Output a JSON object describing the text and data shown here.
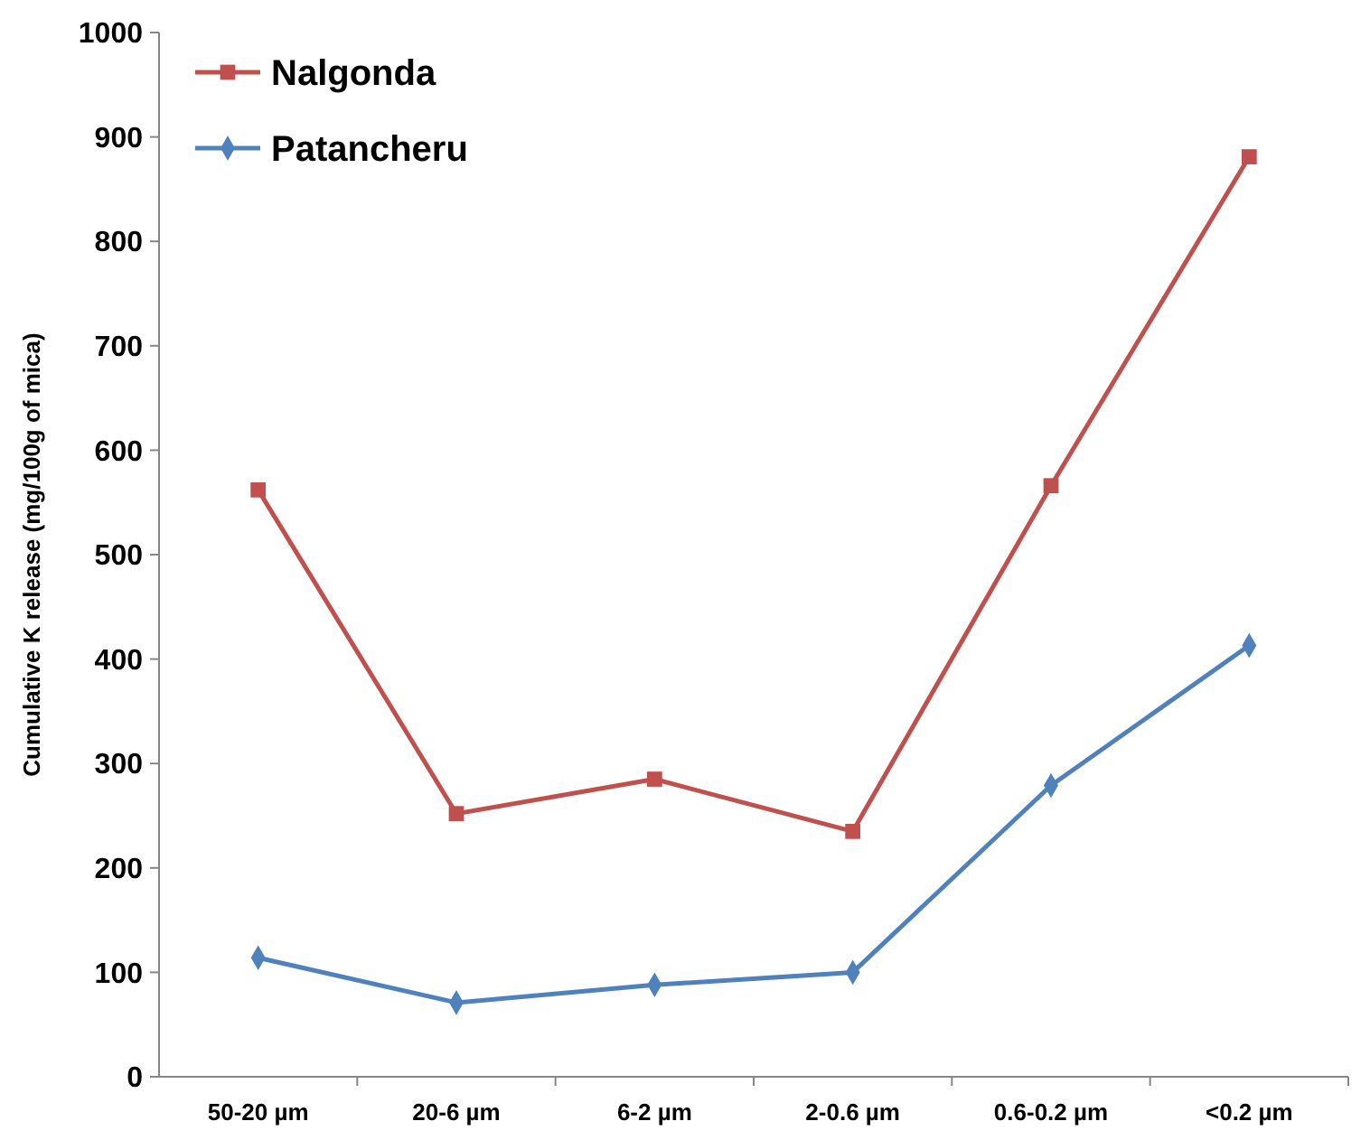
{
  "chart_data": {
    "type": "line",
    "ylabel": "Cumulative K release (mg/100g of mica)",
    "categories": [
      "50-20 µm",
      "20-6 µm",
      "6-2 µm",
      "2-0.6 µm",
      "0.6-0.2 µm",
      "<0.2 µm"
    ],
    "series": [
      {
        "name": "Nalgonda",
        "color": "#c0504d",
        "marker": "square",
        "values": [
          562,
          252,
          285,
          235,
          566,
          881
        ]
      },
      {
        "name": "Patancheru",
        "color": "#4f81bd",
        "marker": "diamond",
        "values": [
          114,
          71,
          88,
          100,
          279,
          413
        ]
      }
    ],
    "ylim": [
      0,
      1000
    ],
    "yticks": [
      0,
      100,
      200,
      300,
      400,
      500,
      600,
      700,
      800,
      900,
      1000
    ],
    "grid": false,
    "legend": "top left",
    "line_style": "solid"
  }
}
